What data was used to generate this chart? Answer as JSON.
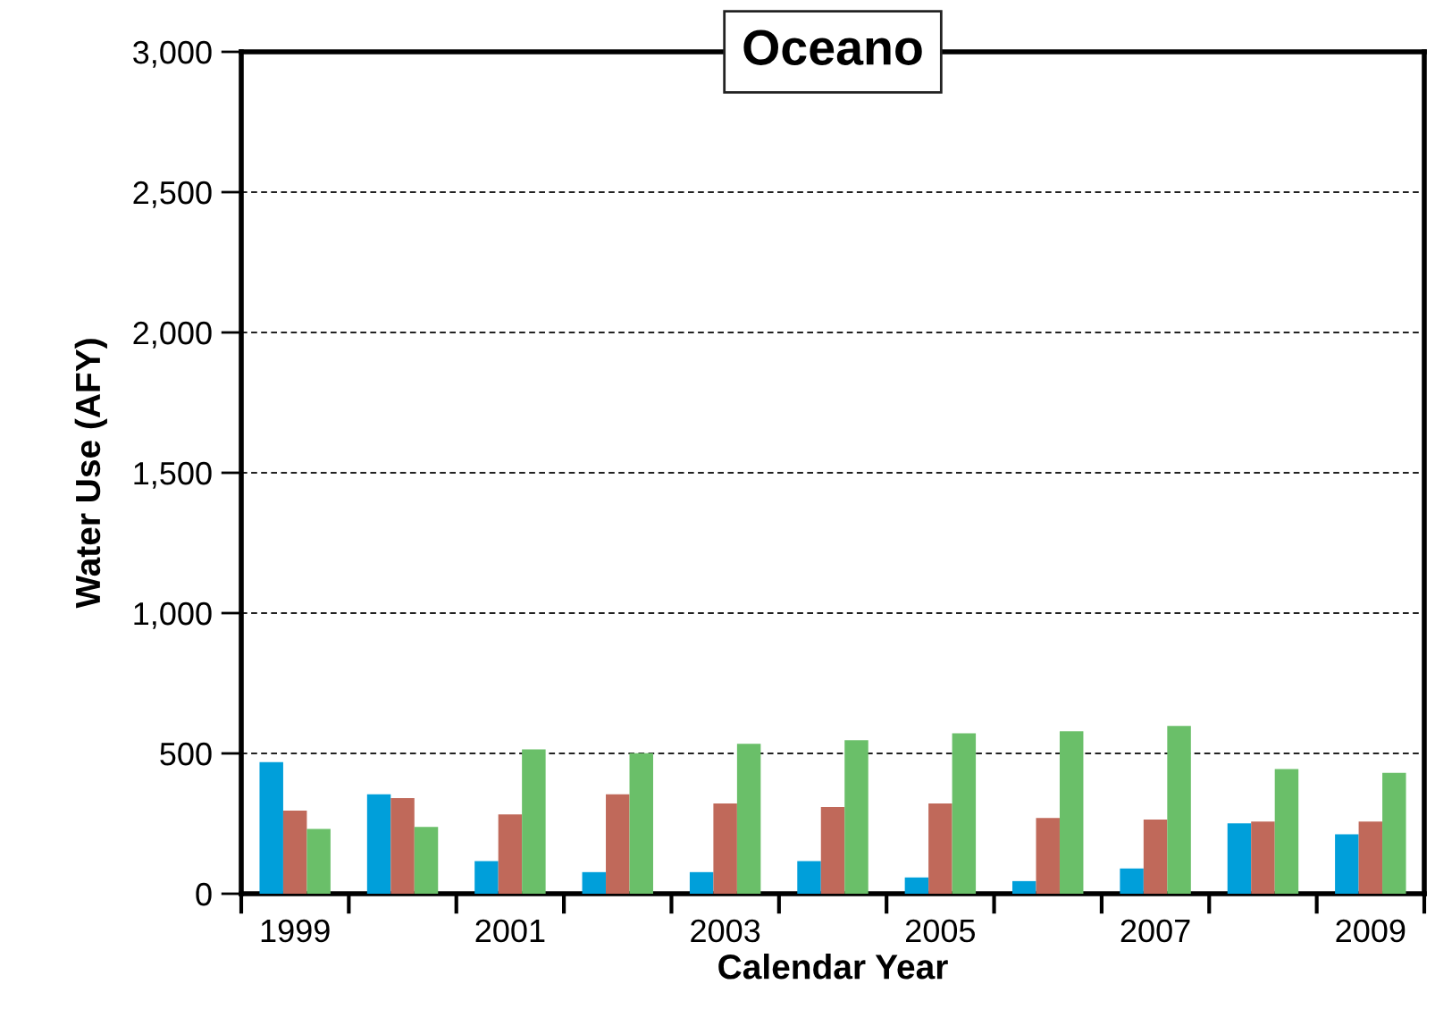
{
  "chart_data": {
    "type": "bar",
    "title": "Oceano",
    "xlabel": "Calendar Year",
    "ylabel": "Water Use (AFY)",
    "categories": [
      "1999",
      null,
      "2001",
      null,
      "2003",
      null,
      "2005",
      null,
      "2007",
      null,
      "2009"
    ],
    "series": [
      {
        "color": "#009fda",
        "values": [
          469,
          354,
          116,
          77,
          77,
          116,
          58,
          45,
          90,
          251,
          212
        ]
      },
      {
        "color": "#c0695a",
        "values": [
          296,
          341,
          283,
          354,
          322,
          309,
          322,
          270,
          264,
          257,
          257
        ]
      },
      {
        "color": "#6abf69",
        "values": [
          231,
          238,
          514,
          501,
          534,
          547,
          572,
          579,
          598,
          444,
          431
        ]
      }
    ],
    "ylim": [
      0,
      3000
    ],
    "yticks": [
      {
        "value": 0,
        "label": "0"
      },
      {
        "value": 500,
        "label": "500"
      },
      {
        "value": 1000,
        "label": "1,000"
      },
      {
        "value": 1500,
        "label": "1,500"
      },
      {
        "value": 2000,
        "label": "2,000"
      },
      {
        "value": 2500,
        "label": "2,500"
      },
      {
        "value": 3000,
        "label": "3,000"
      }
    ],
    "grid": "y",
    "legend": false
  }
}
